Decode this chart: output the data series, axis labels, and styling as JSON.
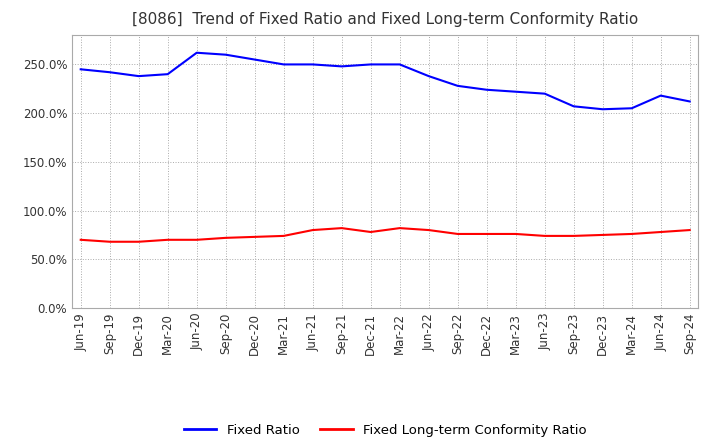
{
  "title": "[8086]  Trend of Fixed Ratio and Fixed Long-term Conformity Ratio",
  "x_labels": [
    "Jun-19",
    "Sep-19",
    "Dec-19",
    "Mar-20",
    "Jun-20",
    "Sep-20",
    "Dec-20",
    "Mar-21",
    "Jun-21",
    "Sep-21",
    "Dec-21",
    "Mar-22",
    "Jun-22",
    "Sep-22",
    "Dec-22",
    "Mar-23",
    "Jun-23",
    "Sep-23",
    "Dec-23",
    "Mar-24",
    "Jun-24",
    "Sep-24"
  ],
  "fixed_ratio": [
    2.45,
    2.42,
    2.38,
    2.4,
    2.62,
    2.6,
    2.55,
    2.5,
    2.5,
    2.48,
    2.5,
    2.5,
    2.38,
    2.28,
    2.24,
    2.22,
    2.2,
    2.07,
    2.04,
    2.05,
    2.18,
    2.12
  ],
  "fixed_lt_ratio": [
    0.7,
    0.68,
    0.68,
    0.7,
    0.7,
    0.72,
    0.73,
    0.74,
    0.8,
    0.82,
    0.78,
    0.82,
    0.8,
    0.76,
    0.76,
    0.76,
    0.74,
    0.74,
    0.75,
    0.76,
    0.78,
    0.8
  ],
  "fixed_ratio_color": "#0000FF",
  "fixed_lt_ratio_color": "#FF0000",
  "ylim_min": 0.0,
  "ylim_max": 2.8,
  "yticks": [
    0.0,
    0.5,
    1.0,
    1.5,
    2.0,
    2.5
  ],
  "ytick_labels": [
    "0.0%",
    "50.0%",
    "100.0%",
    "150.0%",
    "200.0%",
    "250.0%"
  ],
  "background_color": "#FFFFFF",
  "plot_bg_color": "#FFFFFF",
  "grid_color": "#AAAAAA",
  "spine_color": "#AAAAAA",
  "legend_fixed_ratio": "Fixed Ratio",
  "legend_fixed_lt_ratio": "Fixed Long-term Conformity Ratio",
  "title_fontsize": 11,
  "tick_fontsize": 8.5,
  "legend_fontsize": 9.5
}
